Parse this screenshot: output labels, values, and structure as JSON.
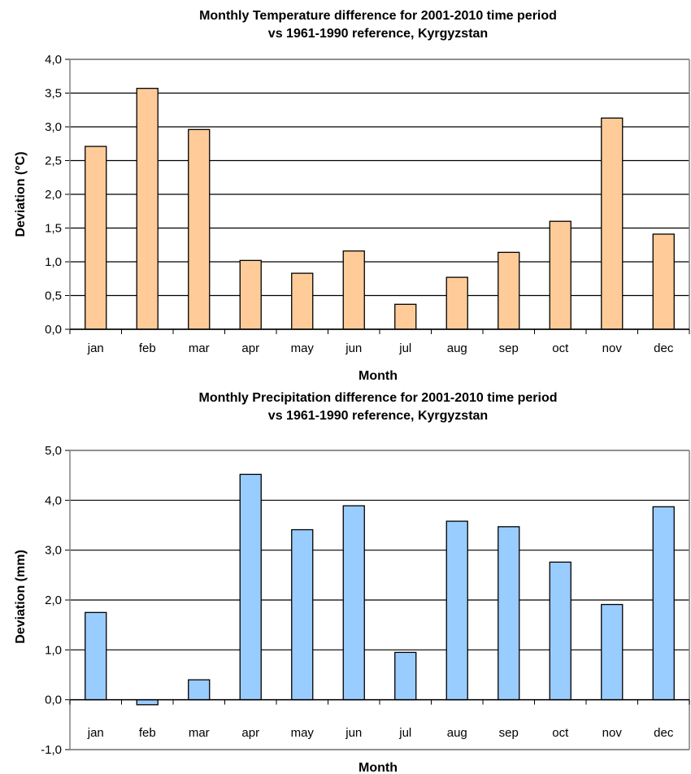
{
  "chart_data": [
    {
      "type": "bar",
      "title": "Monthly Temperature difference for 2001-2010 time period",
      "subtitle": "vs 1961-1990 reference, Kyrgyzstan",
      "xlabel": "Month",
      "ylabel": "Deviation (°C)",
      "categories": [
        "jan",
        "feb",
        "mar",
        "apr",
        "may",
        "jun",
        "jul",
        "aug",
        "sep",
        "oct",
        "nov",
        "dec"
      ],
      "values": [
        2.71,
        3.57,
        2.96,
        1.02,
        0.83,
        1.16,
        0.37,
        0.77,
        1.14,
        1.6,
        3.13,
        1.41
      ],
      "ylim": [
        0,
        4
      ],
      "yticks": [
        "0,0",
        "0,5",
        "1,0",
        "1,5",
        "2,0",
        "2,5",
        "3,0",
        "3,5",
        "4,0"
      ],
      "grid": true,
      "bar_color": "#ffcc99",
      "edge_color": "#000000"
    },
    {
      "type": "bar",
      "title": "Monthly Precipitation difference for 2001-2010 time period",
      "subtitle": "vs 1961-1990 reference, Kyrgyzstan",
      "xlabel": "Month",
      "ylabel": "Deviation (mm)",
      "categories": [
        "jan",
        "feb",
        "mar",
        "apr",
        "may",
        "jun",
        "jul",
        "aug",
        "sep",
        "oct",
        "nov",
        "dec"
      ],
      "values": [
        1.75,
        -0.1,
        0.4,
        4.52,
        3.41,
        3.89,
        0.95,
        3.58,
        3.47,
        2.76,
        1.91,
        3.87
      ],
      "ylim": [
        -1,
        5
      ],
      "yticks": [
        "-1,0",
        "0,0",
        "1,0",
        "2,0",
        "3,0",
        "4,0",
        "5,0"
      ],
      "grid": true,
      "bar_color": "#99ccff",
      "edge_color": "#000000"
    }
  ]
}
